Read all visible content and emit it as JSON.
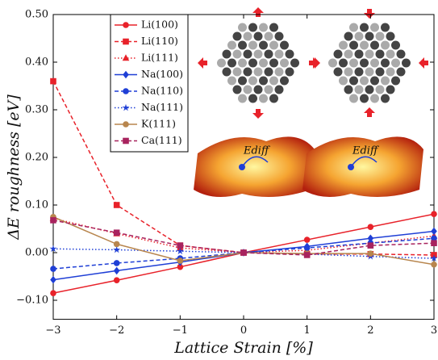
{
  "chart_data": {
    "type": "line",
    "x_label": "Lattice Strain [%]",
    "y_label": "ΔE roughness [eV]",
    "annotations": [
      "Ediff",
      "Ediff"
    ],
    "x": [
      -3,
      -2,
      -1,
      0,
      1,
      2,
      3
    ],
    "xlim": [
      -3,
      3
    ],
    "xticks": [
      {
        "value": -3,
        "label": "−3"
      },
      {
        "value": -2,
        "label": "−2"
      },
      {
        "value": -1,
        "label": "−1"
      },
      0,
      1,
      2,
      3
    ],
    "ylim": [
      -0.14,
      0.5
    ],
    "yticks": [
      {
        "value": -0.1,
        "label": "−0.10"
      },
      {
        "value": 0,
        "label": "0.00"
      },
      {
        "value": 0.1,
        "label": "0.10"
      },
      {
        "value": 0.2,
        "label": "0.20"
      },
      {
        "value": 0.3,
        "label": "0.30"
      },
      {
        "value": 0.4,
        "label": "0.40"
      },
      {
        "value": 0.5,
        "label": "0.50"
      }
    ],
    "legend": "upper left",
    "series": [
      {
        "name": "Li(100)",
        "color": "#e8222a",
        "linestyle": "solid",
        "marker": "circle",
        "values": [
          -0.085,
          -0.058,
          -0.03,
          0,
          0.027,
          0.054,
          0.081
        ]
      },
      {
        "name": "Li(110)",
        "color": "#e8222a",
        "linestyle": "dashed",
        "marker": "square",
        "values": [
          0.36,
          0.1,
          0.015,
          0,
          -0.003,
          -0.003,
          -0.005
        ]
      },
      {
        "name": "Li(111)",
        "color": "#e8222a",
        "linestyle": "dotted",
        "marker": "triangle",
        "values": [
          0.072,
          0.04,
          0.01,
          0,
          0.005,
          0.02,
          0.035
        ]
      },
      {
        "name": "Na(100)",
        "color": "#1f3fd6",
        "linestyle": "solid",
        "marker": "diamond",
        "values": [
          -0.057,
          -0.038,
          -0.02,
          0,
          0.013,
          0.03,
          0.045
        ]
      },
      {
        "name": "Na(110)",
        "color": "#1f3fd6",
        "linestyle": "dashed",
        "marker": "circle",
        "values": [
          -0.034,
          -0.022,
          -0.012,
          0,
          0.01,
          0.02,
          0.03
        ]
      },
      {
        "name": "Na(111)",
        "color": "#1f3fd6",
        "linestyle": "dotted",
        "marker": "star",
        "values": [
          0.008,
          0.006,
          0.003,
          0,
          -0.003,
          -0.008,
          -0.012
        ]
      },
      {
        "name": "K(111)",
        "color": "#b8864e",
        "linestyle": "solid",
        "marker": "circle",
        "values": [
          0.075,
          0.018,
          -0.017,
          0,
          -0.002,
          -0.002,
          -0.025
        ]
      },
      {
        "name": "Ca(111)",
        "color": "#a8235e",
        "linestyle": "dashed",
        "marker": "square",
        "values": [
          0.068,
          0.042,
          0.015,
          0,
          -0.005,
          0.015,
          0.02
        ]
      }
    ]
  }
}
